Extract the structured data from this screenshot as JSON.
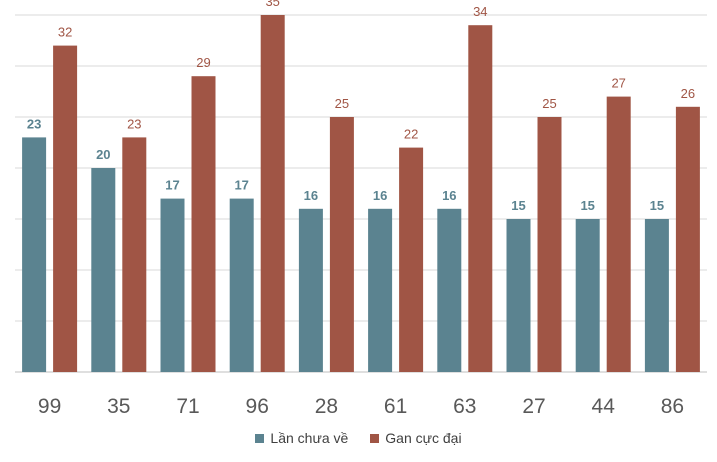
{
  "chart_data": {
    "type": "bar",
    "title": "",
    "xlabel": "",
    "ylabel": "",
    "ylim": [
      0,
      35
    ],
    "grid": true,
    "legend_position": "bottom-center",
    "categories": [
      "99",
      "35",
      "71",
      "96",
      "28",
      "61",
      "63",
      "27",
      "44",
      "86"
    ],
    "series": [
      {
        "name": "Lần chưa về",
        "color": "#5b8390",
        "values": [
          23,
          20,
          17,
          17,
          16,
          16,
          16,
          15,
          15,
          15
        ]
      },
      {
        "name": "Gan cực đại",
        "color": "#a05545",
        "values": [
          32,
          23,
          29,
          35,
          25,
          22,
          34,
          25,
          27,
          26
        ]
      }
    ]
  }
}
